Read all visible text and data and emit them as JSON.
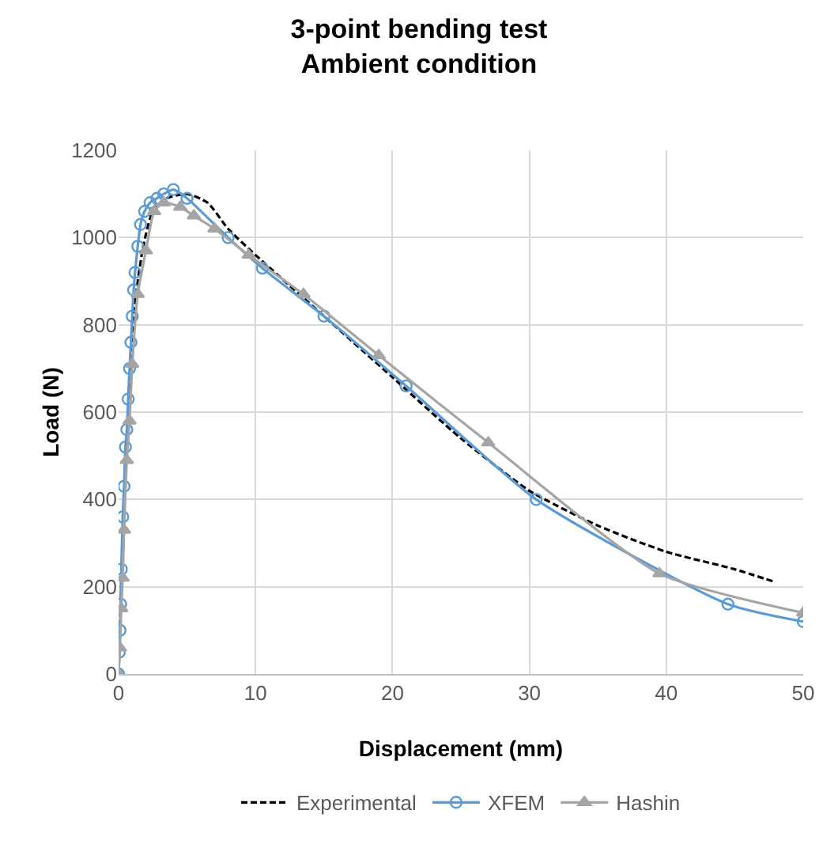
{
  "chart_data": {
    "type": "line",
    "title": "3-point bending test\nAmbient condition",
    "xlabel": "Displacement (mm)",
    "ylabel": "Load (N)",
    "xlim": [
      0,
      50
    ],
    "xticks": [
      0,
      10,
      20,
      30,
      40,
      50
    ],
    "ylim": [
      0,
      1200
    ],
    "yticks": [
      0,
      200,
      400,
      600,
      800,
      1000,
      1200
    ],
    "grid": true,
    "legend": "bottom",
    "series": [
      {
        "name": "Experimental",
        "color": "#000000",
        "line_style": "dashed",
        "marker": "none",
        "x": [
          0,
          0.3,
          0.7,
          1.2,
          1.8,
          2.5,
          3.5,
          5,
          6.5,
          8,
          10,
          15,
          20,
          25,
          30,
          35,
          40,
          45,
          48
        ],
        "values": [
          0,
          300,
          600,
          850,
          980,
          1060,
          1090,
          1100,
          1080,
          1020,
          960,
          820,
          680,
          540,
          420,
          340,
          280,
          240,
          210
        ]
      },
      {
        "name": "XFEM",
        "color": "#5b9bd5",
        "line_style": "solid",
        "marker": "circle",
        "x": [
          0,
          0.05,
          0.1,
          0.15,
          0.2,
          0.3,
          0.4,
          0.5,
          0.6,
          0.7,
          0.8,
          0.9,
          1.0,
          1.1,
          1.2,
          1.4,
          1.6,
          1.9,
          2.3,
          2.8,
          3.3,
          4,
          5,
          8,
          10.5,
          15,
          21,
          30.5,
          44.5,
          50
        ],
        "values": [
          0,
          50,
          100,
          160,
          240,
          360,
          430,
          520,
          560,
          630,
          700,
          760,
          820,
          880,
          920,
          980,
          1030,
          1060,
          1080,
          1090,
          1100,
          1110,
          1090,
          1000,
          930,
          820,
          660,
          400,
          160,
          120
        ]
      },
      {
        "name": "Hashin",
        "color": "#a5a5a5",
        "line_style": "solid",
        "marker": "triangle",
        "x": [
          0,
          0.1,
          0.2,
          0.3,
          0.4,
          0.6,
          0.8,
          1.0,
          1.4,
          2,
          2.6,
          3.3,
          4.5,
          5.5,
          7,
          9.5,
          13.5,
          19,
          27,
          39.5,
          50
        ],
        "values": [
          0,
          60,
          150,
          220,
          330,
          490,
          580,
          710,
          870,
          970,
          1060,
          1080,
          1070,
          1050,
          1020,
          960,
          870,
          730,
          530,
          230,
          140
        ]
      }
    ]
  }
}
